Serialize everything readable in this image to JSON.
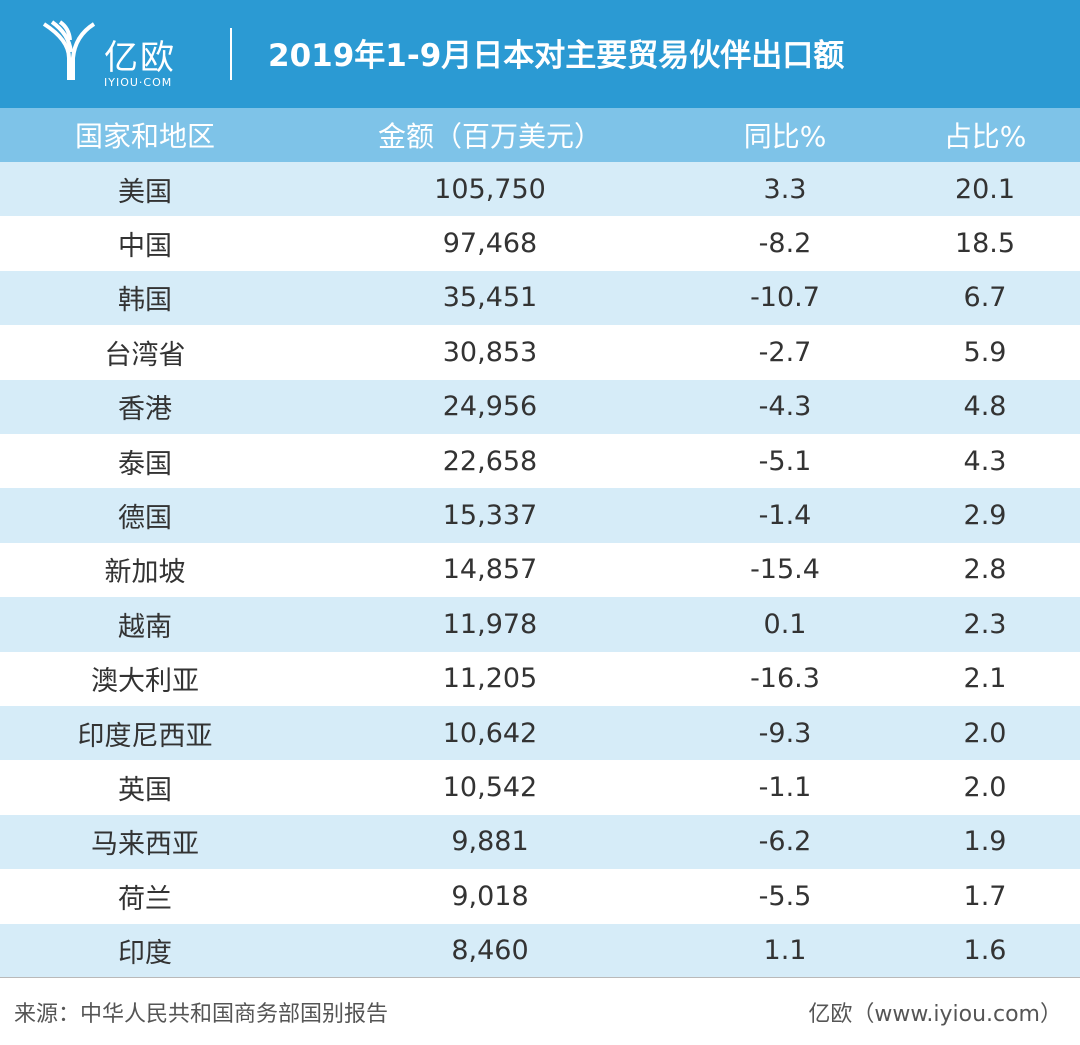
{
  "brand": {
    "name": "亿欧",
    "domain": "IYIOU·COM"
  },
  "title": "2019年1-9月日本对主要贸易伙伴出口额",
  "colors": {
    "header": "#2b9ad3",
    "table_head": "#7ec3e8",
    "row_shade": "#d6ecf8"
  },
  "chart_data": {
    "type": "table",
    "title": "2019年1-9月日本对主要贸易伙伴出口额",
    "columns": [
      "国家和地区",
      "金额（百万美元）",
      "同比%",
      "占比%"
    ],
    "rows": [
      [
        "美国",
        "105,750",
        "3.3",
        "20.1"
      ],
      [
        "中国",
        "97,468",
        "-8.2",
        "18.5"
      ],
      [
        "韩国",
        "35,451",
        "-10.7",
        "6.7"
      ],
      [
        "台湾省",
        "30,853",
        "-2.7",
        "5.9"
      ],
      [
        "香港",
        "24,956",
        "-4.3",
        "4.8"
      ],
      [
        "泰国",
        "22,658",
        "-5.1",
        "4.3"
      ],
      [
        "德国",
        "15,337",
        "-1.4",
        "2.9"
      ],
      [
        "新加坡",
        "14,857",
        "-15.4",
        "2.8"
      ],
      [
        "越南",
        "11,978",
        "0.1",
        "2.3"
      ],
      [
        "澳大利亚",
        "11,205",
        "-16.3",
        "2.1"
      ],
      [
        "印度尼西亚",
        "10,642",
        "-9.3",
        "2.0"
      ],
      [
        "英国",
        "10,542",
        "-1.1",
        "2.0"
      ],
      [
        "马来西亚",
        "9,881",
        "-6.2",
        "1.9"
      ],
      [
        "荷兰",
        "9,018",
        "-5.5",
        "1.7"
      ],
      [
        "印度",
        "8,460",
        "1.1",
        "1.6"
      ]
    ]
  },
  "footer": {
    "source": "来源：中华人民共和国商务部国别报告",
    "credit": "亿欧（www.iyiou.com）"
  }
}
